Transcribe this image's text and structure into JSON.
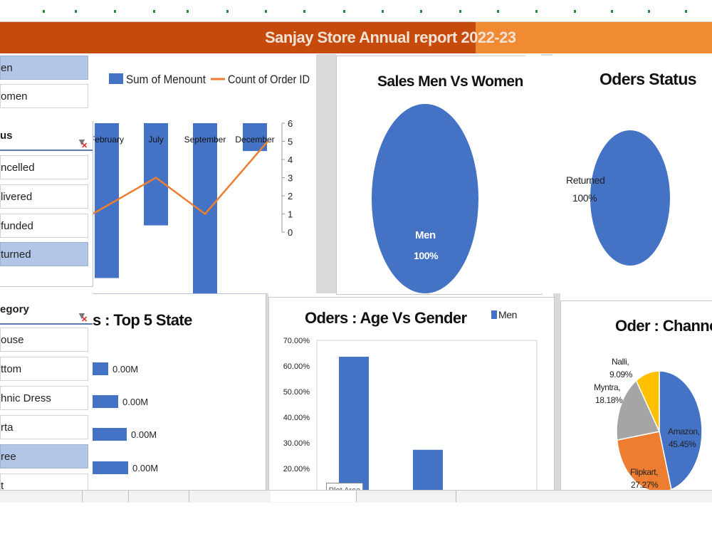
{
  "report": {
    "title": "Sanjay Store Annual report 2022-23"
  },
  "colors": {
    "title_bar": "#c54a0b",
    "title_bar_right": "#f08a33",
    "bar_blue": "#4472c4",
    "line_orange": "#ed7d31",
    "slicer_selected": "#b4c6e7",
    "pie_gray": "#a5a5a5",
    "pie_yellow": "#ffc000"
  },
  "slicers": {
    "gender": {
      "items": [
        {
          "label": "en",
          "selected": true
        },
        {
          "label": "omen",
          "selected": false
        }
      ]
    },
    "status": {
      "header": "us",
      "items": [
        {
          "label": "ncelled",
          "selected": false
        },
        {
          "label": "livered",
          "selected": false
        },
        {
          "label": "funded",
          "selected": false
        },
        {
          "label": "turned",
          "selected": true
        }
      ]
    },
    "category": {
      "header": "egory",
      "items": [
        {
          "label": "ouse",
          "selected": false
        },
        {
          "label": "ttom",
          "selected": false
        },
        {
          "label": "hnic Dress",
          "selected": false
        },
        {
          "label": "rta",
          "selected": false
        },
        {
          "label": "ree",
          "selected": true
        },
        {
          "label": "t",
          "selected": false
        }
      ]
    }
  },
  "chart_data": [
    {
      "type": "bar+line",
      "title": "",
      "legend": [
        "Sum of Menount",
        "Count of Order ID"
      ],
      "legend_position": "top",
      "categories": [
        "February",
        "July",
        "September",
        "December"
      ],
      "series": [
        {
          "name": "Sum of Menount",
          "type": "bar",
          "values": [
            -5,
            -3.3,
            -5.6,
            -0.9
          ]
        },
        {
          "name": "Count of Order ID",
          "type": "line",
          "values": [
            1,
            3,
            1,
            5
          ]
        }
      ],
      "y2_ticks": [
        "6",
        "5",
        "4",
        "3",
        "2",
        "1",
        "0"
      ],
      "y2lim": [
        0,
        6
      ]
    },
    {
      "type": "pie",
      "title": "Sales Men Vs Women",
      "slices": [
        {
          "label": "Men",
          "value": 100,
          "display": "100%"
        }
      ]
    },
    {
      "type": "pie",
      "title": "Oders Status",
      "slices": [
        {
          "label": "Returned",
          "value": 100,
          "display": "100%"
        }
      ]
    },
    {
      "type": "bar",
      "orientation": "horizontal",
      "title": "s : Top 5 State",
      "values": [
        0,
        0,
        0,
        0
      ],
      "value_labels": [
        "0.00M",
        "0.00M",
        "0.00M",
        "0.00M"
      ]
    },
    {
      "type": "bar",
      "title": "Oders : Age Vs Gender",
      "legend": [
        "Men"
      ],
      "legend_position": "top-right",
      "values": [
        63.6,
        27.3
      ],
      "y_ticks": [
        "70.00%",
        "60.00%",
        "50.00%",
        "40.00%",
        "30.00%",
        "20.00%"
      ],
      "ylim": [
        20,
        70
      ],
      "tooltip": "Plot Area"
    },
    {
      "type": "pie",
      "title": "Oder : Channel",
      "slices": [
        {
          "label": "Amazon,",
          "pct": "45.45%",
          "value": 45.45
        },
        {
          "label": "Flipkart,",
          "pct": "27.27%",
          "value": 27.27
        },
        {
          "label": "Myntra,",
          "pct": "18.18%",
          "value": 18.18
        },
        {
          "label": "Nalli,",
          "pct": "9.09%",
          "value": 9.09
        }
      ]
    }
  ]
}
